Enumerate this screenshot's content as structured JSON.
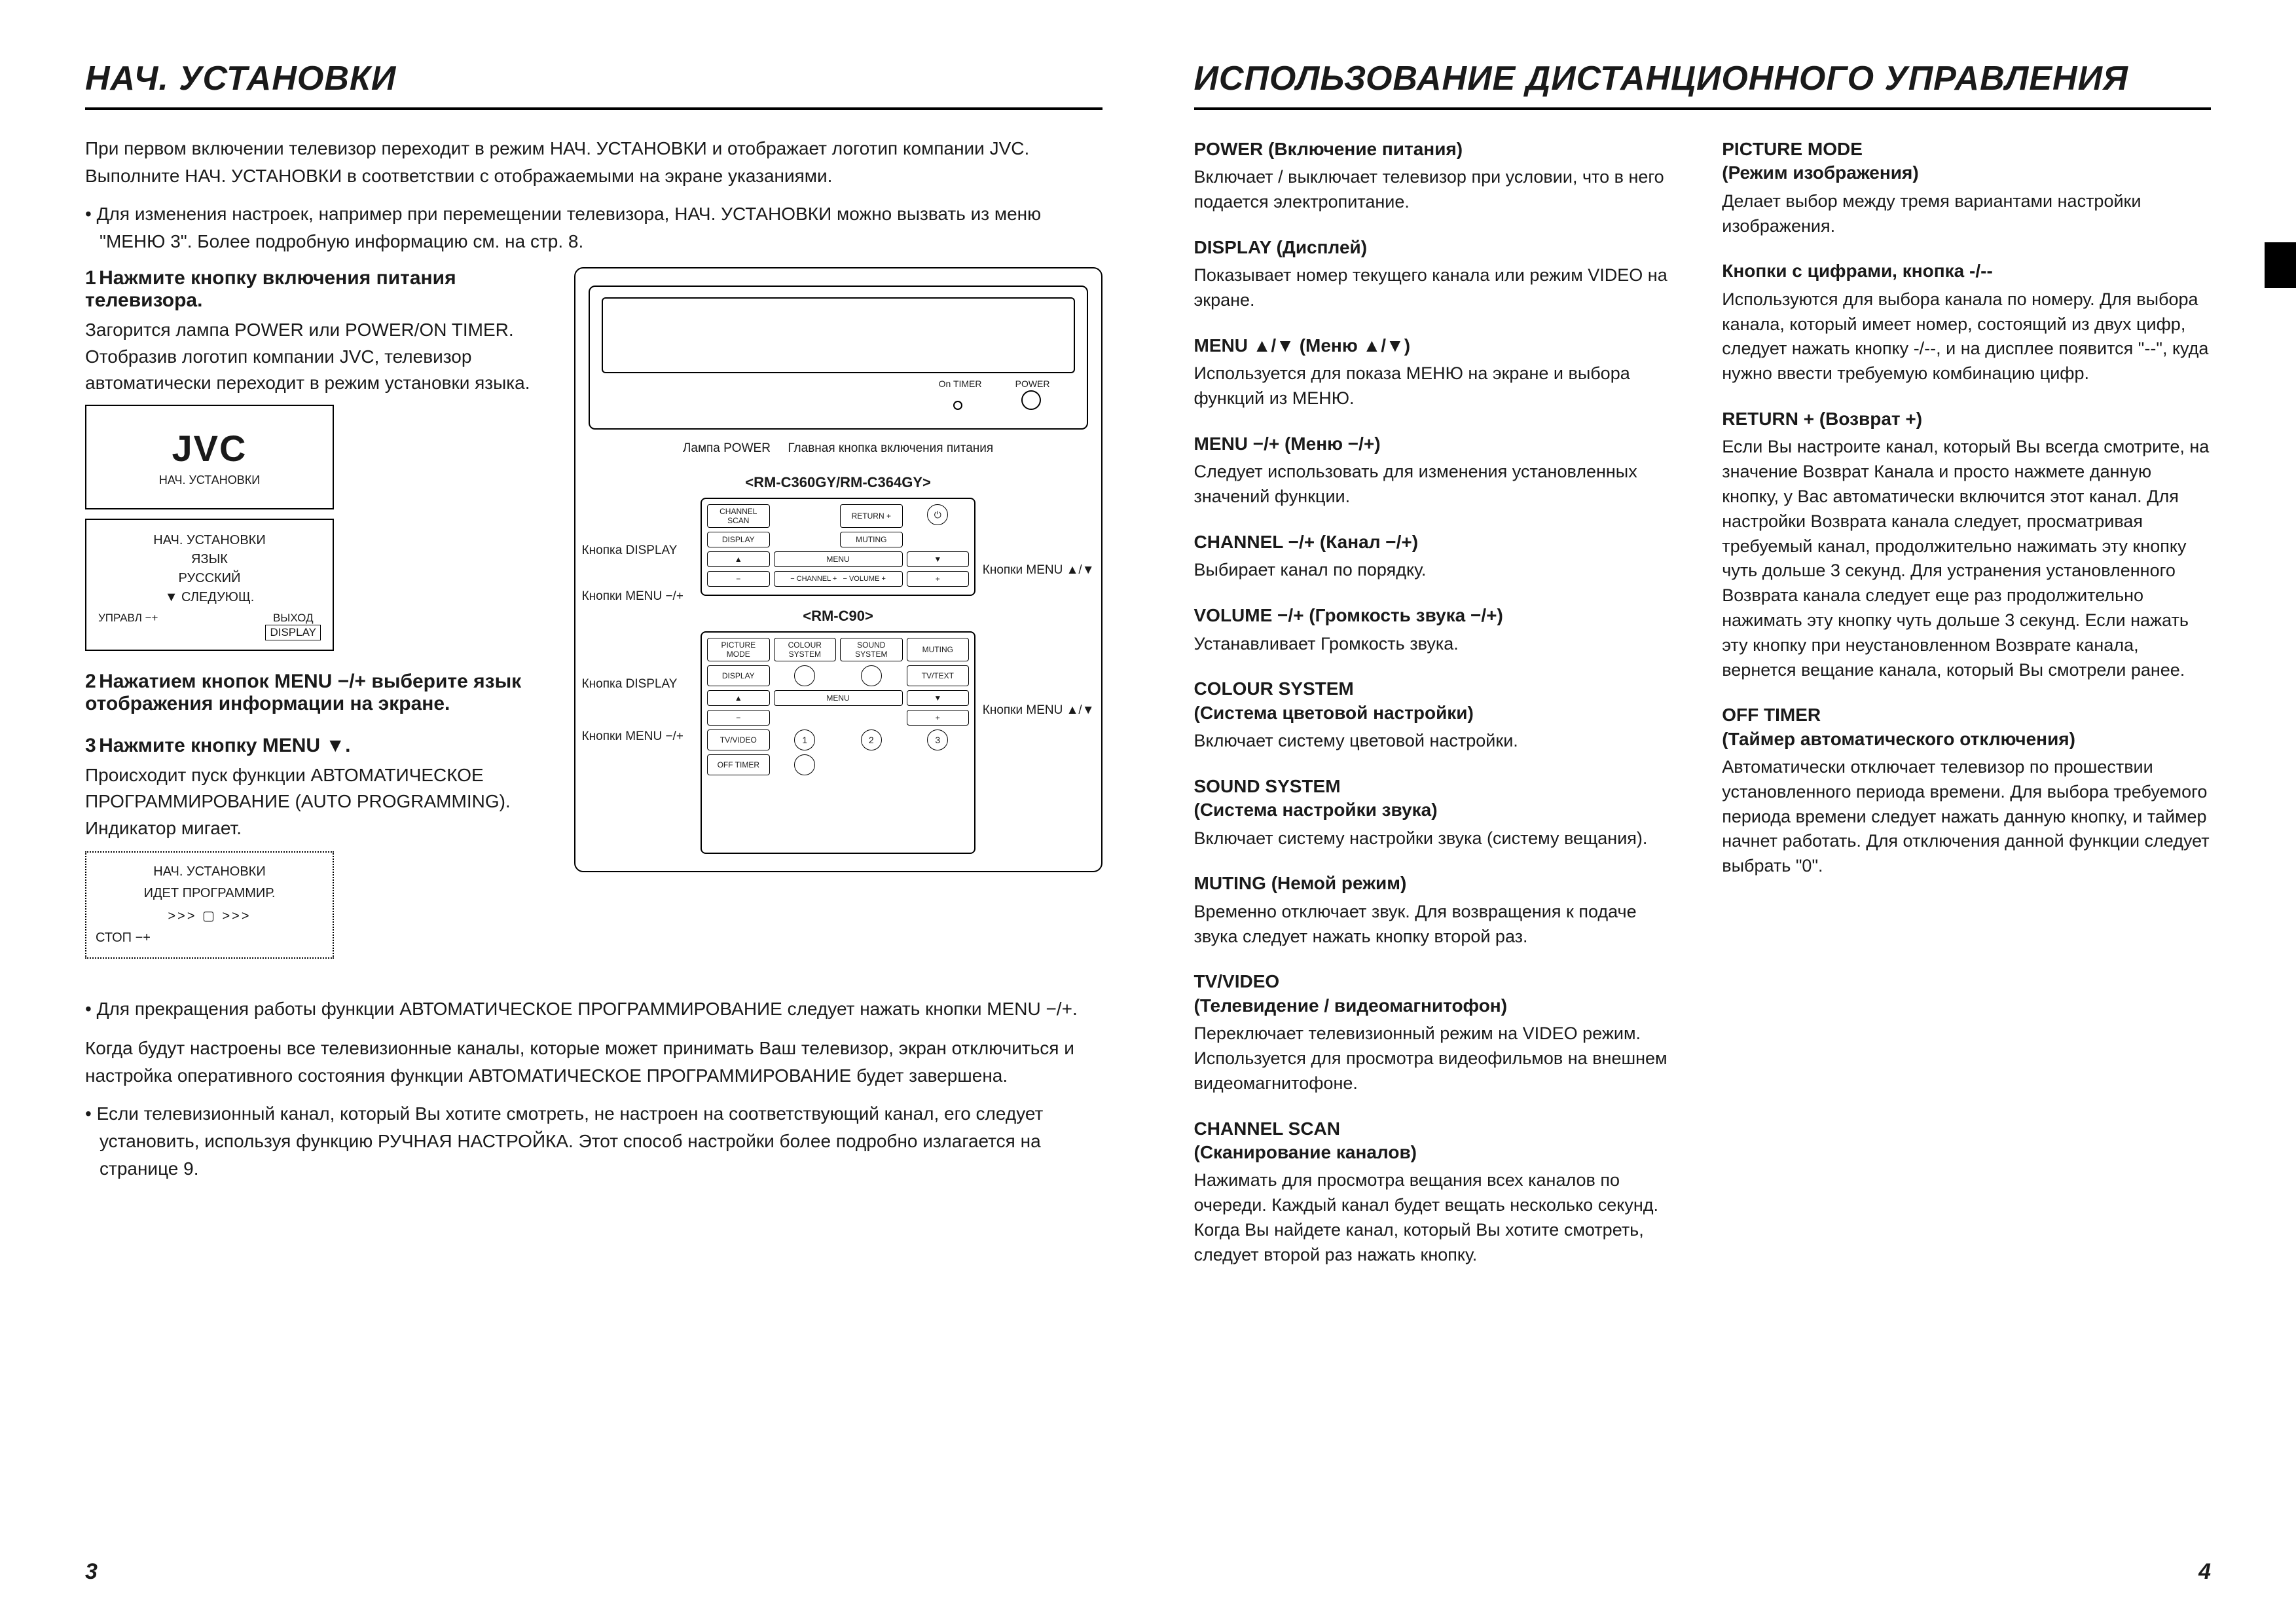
{
  "left": {
    "title": "НАЧ. УСТАНОВКИ",
    "intro": "При первом включении телевизор переходит в режим НАЧ. УСТАНОВКИ и отображает логотип компании JVC. Выполните НАЧ. УСТАНОВКИ в соответствии с отображаемыми на экране указаниями.",
    "bullet1": "• Для изменения настроек, например при перемещении телевизора, НАЧ. УСТАНОВКИ можно вызвать из меню \"МЕНЮ 3\". Более подробную информацию см. на стр. 8.",
    "step1_num": "1",
    "step1_title": "Нажмите кнопку включения питания телевизора.",
    "step1_body": "Загорится лампа POWER или POWER/ON TIMER. Отобразив логотип компании JVC, телевизор автоматически переходит в режим установки языка.",
    "jvc_logo": "JVC",
    "jvc_caption": "НАЧ. УСТАНОВКИ",
    "osd_title": "НАЧ. УСТАНОВКИ",
    "osd_lang_label": "ЯЗЫК",
    "osd_lang_value": "РУССКИЙ",
    "osd_next": "▼  СЛЕДУЮЩ.",
    "osd_footer_left": "УПРАВЛ  −+",
    "osd_footer_right_label": "ВЫХОД",
    "osd_footer_right_btn": "DISPLAY",
    "step2_num": "2",
    "step2_title": "Нажатием кнопок MENU −/+ выберите язык отображения информации на экране.",
    "step3_num": "3",
    "step3_title": "Нажмите кнопку MENU ▼.",
    "step3_body": "Происходит пуск функции АВТОМАТИЧЕСКОЕ ПРОГРАММИРОВАНИЕ (AUTO PROGRAMMING). Индикатор мигает.",
    "prog_box_title": "НАЧ. УСТАНОВКИ",
    "prog_box_text": "ИДЕТ ПРОГРАММИР.",
    "prog_box_progress": ">>>  ▢  >>>",
    "prog_box_stop": "СТОП  −+",
    "tv_lamp_label": "Лампа POWER",
    "tv_main_button_label": "Главная кнопка включения питания",
    "tv_on_timer": "On TIMER",
    "tv_power": "POWER",
    "remote1_caption": "<RM-C360GY/RM-C364GY>",
    "remote2_caption": "<RM-C90>",
    "callout_display": "Кнопка DISPLAY",
    "callout_menu_minus": "Кнопки MENU −/+",
    "callout_menu_arrow": "Кнопки MENU ▲/▼",
    "r1_channel_scan": "CHANNEL SCAN",
    "r1_return": "RETURN +",
    "r1_display": "DISPLAY",
    "r1_muting": "MUTING",
    "r1_menu": "MENU",
    "r1_channel": "CHANNEL",
    "r1_volume": "VOLUME",
    "r2_picture": "PICTURE MODE",
    "r2_colour": "COLOUR SYSTEM",
    "r2_sound": "SOUND SYSTEM",
    "r2_muting": "MUTING",
    "r2_display": "DISPLAY",
    "r2_tvtext": "TV/TEXT",
    "r2_menu": "MENU",
    "r2_tvvideo": "TV/VIDEO",
    "r2_off_timer": "OFF TIMER",
    "bullet2": "• Для прекращения работы функции АВТОМАТИЧЕСКОЕ ПРОГРАММИРОВАНИЕ следует нажать кнопки MENU −/+.",
    "para2": "Когда будут настроены все телевизионные каналы, которые может принимать Ваш телевизор, экран отключиться и настройка оперативного состояния функции АВТОМАТИЧЕСКОЕ ПРОГРАММИРОВАНИЕ будет завершена.",
    "bullet3": "• Если телевизионный канал, который Вы хотите смотреть, не настроен на соответствующий канал, его следует установить, используя функцию РУЧНАЯ НАСТРОЙКА. Этот способ настройки более подробно излагается на странице 9.",
    "page_num": "3"
  },
  "right": {
    "title": "ИСПОЛЬЗОВАНИЕ ДИСТАНЦИОННОГО УПРАВЛЕНИЯ",
    "page_num": "4",
    "colA": [
      {
        "t": "POWER (Включение питания)",
        "b": "Включает / выключает телевизор при условии, что в него подается электропитание."
      },
      {
        "t": "DISPLAY (Дисплей)",
        "b": "Показывает номер текущего канала или режим VIDEO на экране."
      },
      {
        "t": "MENU ▲/▼ (Меню ▲/▼)",
        "b": "Используется для показа МЕНЮ на экране и выбора функций из МЕНЮ."
      },
      {
        "t": "MENU −/+ (Меню −/+)",
        "b": "Следует использовать для изменения установленных значений функции."
      },
      {
        "t": "CHANNEL −/+ (Канал −/+)",
        "b": "Выбирает канал по порядку."
      },
      {
        "t": "VOLUME −/+ (Громкость звука −/+)",
        "b": "Устанавливает Громкость звука."
      },
      {
        "t": "COLOUR SYSTEM\n(Система цветовой настройки)",
        "b": "Включает систему цветовой настройки."
      },
      {
        "t": "SOUND SYSTEM\n(Система настройки звука)",
        "b": "Включает систему настройки звука (систему вещания)."
      },
      {
        "t": "MUTING (Немой режим)",
        "b": "Временно отключает звук. Для возвращения к подаче звука следует нажать кнопку второй раз."
      },
      {
        "t": "TV/VIDEO\n(Телевидение / видеомагнитофон)",
        "b": "Переключает телевизионный режим на VIDEO режим. Используется для просмотра видеофильмов на внешнем видеомагнитофоне."
      },
      {
        "t": "CHANNEL SCAN\n(Сканирование каналов)",
        "b": "Нажимать для просмотра вещания всех каналов по очереди. Каждый канал будет вещать несколько секунд. Когда Вы найдете канал, который Вы хотите смотреть, следует второй раз нажать кнопку."
      }
    ],
    "colB": [
      {
        "t": "PICTURE MODE\n(Режим изображения)",
        "b": "Делает выбор между тремя вариантами настройки изображения."
      },
      {
        "t": "Кнопки с цифрами, кнопка -/--",
        "b": "Используются для выбора канала по номеру. Для выбора канала, который имеет номер, состоящий из двух цифр, следует нажать кнопку -/--, и на дисплее появится \"--\", куда нужно ввести требуемую комбинацию цифр."
      },
      {
        "t": "RETURN + (Возврат +)",
        "b": "Если Вы настроите канал, который Вы всегда смотрите, на значение Возврат Канала и просто нажмете данную кнопку, у Вас автоматически включится этот канал. Для настройки Возврата канала следует, просматривая требуемый канал, продолжительно нажимать эту кнопку чуть дольше 3 секунд. Для устранения установленного Возврата канала следует еще раз продолжительно нажимать эту кнопку чуть дольше 3 секунд. Если нажать эту кнопку при неустановленном Возврате канала, вернется вещание канала, который Вы смотрели ранее."
      },
      {
        "t": "OFF TIMER\n(Таймер автоматического отключения)",
        "b": "Автоматически отключает телевизор по прошествии установленного периода времени. Для выбора требуемого периода времени следует нажать данную кнопку, и таймер начнет работать. Для отключения данной функции следует выбрать \"0\"."
      }
    ]
  }
}
